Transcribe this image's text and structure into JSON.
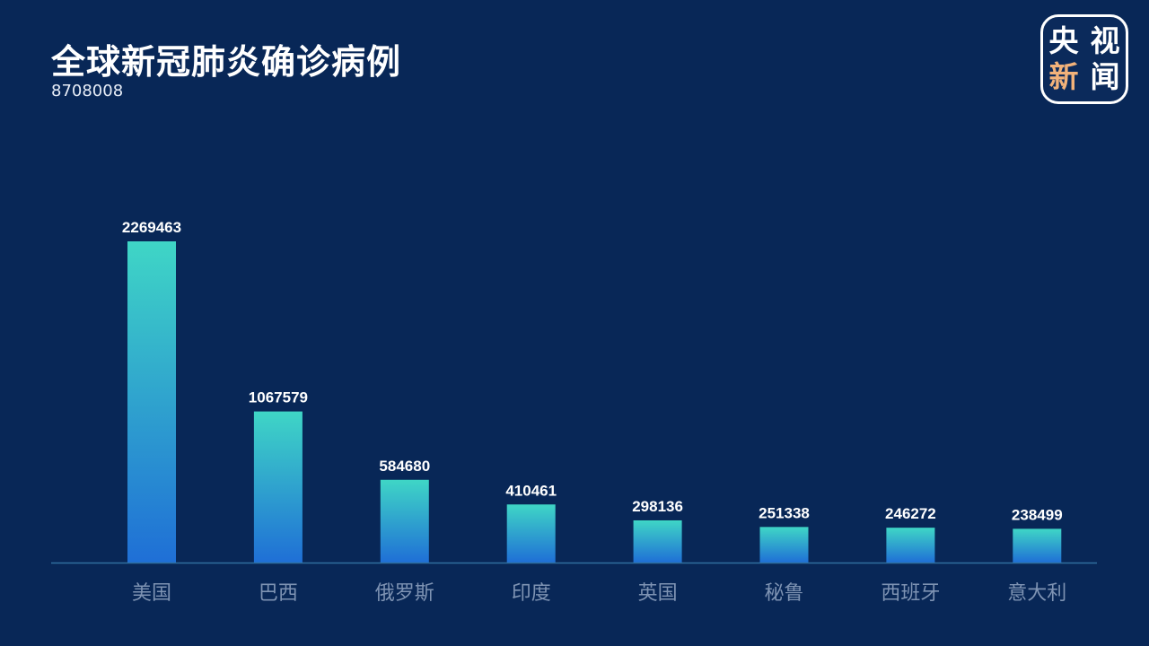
{
  "header": {
    "title": "全球新冠肺炎确诊病例",
    "total": "8708008"
  },
  "logo": {
    "chars": [
      "央",
      "视",
      "新",
      "闻"
    ]
  },
  "chart_data": {
    "type": "bar",
    "title": "全球新冠肺炎确诊病例",
    "subtitle": "8708008",
    "categories": [
      "美国",
      "巴西",
      "俄罗斯",
      "印度",
      "英国",
      "秘鲁",
      "西班牙",
      "意大利"
    ],
    "values": [
      2269463,
      1067579,
      584680,
      410461,
      298136,
      251338,
      246272,
      238499
    ],
    "xlabel": "",
    "ylabel": "",
    "ylim": [
      0,
      2269463
    ],
    "grid": false,
    "colors": {
      "bar_top": "#3fd6c6",
      "bar_bottom": "#1f6fd6",
      "axis": "#2f6f9f",
      "background": "#082757"
    }
  }
}
